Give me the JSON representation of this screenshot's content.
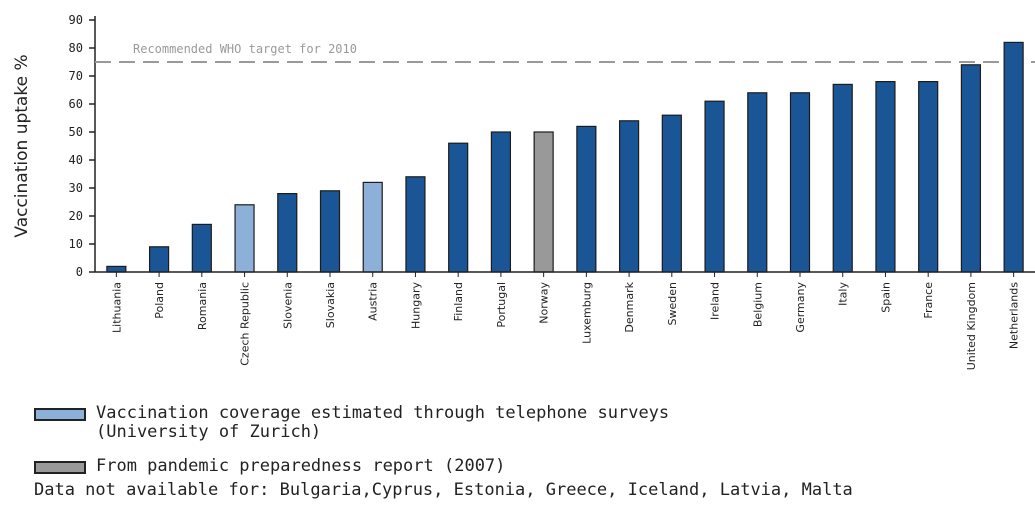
{
  "chart_data": {
    "type": "bar",
    "ylabel": "Vaccination uptake %",
    "xlabel": "",
    "ylim": [
      0,
      90
    ],
    "yticks": [
      0,
      10,
      20,
      30,
      40,
      50,
      60,
      70,
      80,
      90
    ],
    "categories": [
      "Lithuania",
      "Poland",
      "Romania",
      "Czech Republic",
      "Slovenia",
      "Slovakia",
      "Austria",
      "Hungary",
      "Finland",
      "Portugal",
      "Norway",
      "Luxemburg",
      "Denmark",
      "Sweden",
      "Ireland",
      "Belgium",
      "Germany",
      "Italy",
      "Spain",
      "France",
      "United Kingdom",
      "Netherlands"
    ],
    "values": [
      2,
      9,
      17,
      24,
      28,
      29,
      32,
      34,
      46,
      50,
      50,
      52,
      54,
      56,
      61,
      64,
      64,
      67,
      68,
      68,
      74,
      82
    ],
    "bar_source": [
      "default",
      "default",
      "default",
      "telephone",
      "default",
      "default",
      "telephone",
      "default",
      "default",
      "default",
      "pandemic",
      "default",
      "default",
      "default",
      "default",
      "default",
      "default",
      "default",
      "default",
      "default",
      "default",
      "default"
    ],
    "reference_line": {
      "value": 75,
      "label": "Recommended WHO target for 2010"
    },
    "colors": {
      "default": "#1a5595",
      "telephone": "#8cb0d8",
      "pandemic": "#999999",
      "reference": "#9a9a9a"
    },
    "grid": false
  },
  "legend": {
    "telephone_label": "Vaccination coverage estimated through telephone surveys\n(University of Zurich)",
    "pandemic_label": "From pandemic preparedness report (2007)"
  },
  "note": "Data not available for: Bulgaria,Cyprus, Estonia, Greece, Iceland, Latvia, Malta"
}
